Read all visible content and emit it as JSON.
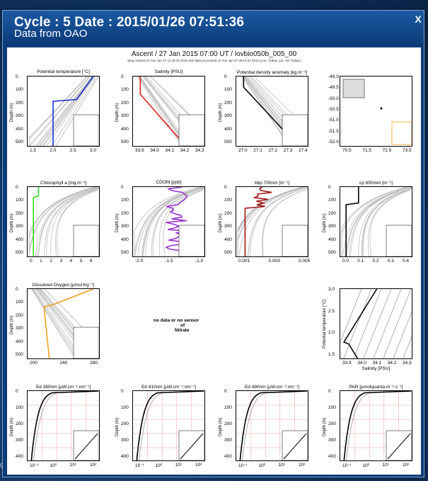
{
  "window": {
    "title": "Cycle : 5 Date : 2015/01/26 07:51:36",
    "subtitle": "Data from OAO",
    "close_label": "X"
  },
  "figure": {
    "header": "Ascent / 27 Jan 2015 07:00 UT /  lovbio050b_005_00",
    "subheader": "Jpeg created on Tue Jan 27 11:29:43 2015 with data processed on Tue Jan 27 08:51:52 2015 (Lon: 72deg, Lat: -50.73deg.)",
    "no_data_text": "no data or no sensor",
    "no_data_of": "of",
    "no_data_var": "Nitrate",
    "panels": [
      {
        "id": "temp",
        "title": "Potential temperature [°C]",
        "ylabel": "Depth (m)",
        "yticks": [
          "0",
          "100",
          "200",
          "300",
          "400",
          "500"
        ],
        "xticks": [
          "1.5",
          "2.0",
          "2.5",
          "3.0"
        ],
        "color": "#1f2fd0"
      },
      {
        "id": "sal",
        "title": "Salinity [PSU]",
        "ylabel": "Depth (m)",
        "yticks": [
          "0",
          "100",
          "200",
          "300",
          "400",
          "500"
        ],
        "xticks": [
          "33.9",
          "34.0",
          "34.1",
          "34.2",
          "34.3"
        ],
        "color": "#e01b1b"
      },
      {
        "id": "dens",
        "title": "Potential density anomaly [kg.m⁻³]",
        "ylabel": "Depth (m)",
        "yticks": [
          "0",
          "100",
          "200",
          "300",
          "400",
          "500"
        ],
        "xticks": [
          "27.0",
          "27.1",
          "27.2",
          "27.3",
          "27.4"
        ],
        "color": "#000000"
      },
      {
        "id": "map",
        "title": "",
        "ylabel": "",
        "yticks": [
          "-49.0",
          "-49.5",
          "-50.0",
          "-50.5",
          "-51.0",
          "-51.5",
          "-52.0"
        ],
        "xticks": [
          "70.5",
          "71.5",
          "72.5",
          "73.5"
        ],
        "color": "#000000"
      },
      {
        "id": "chl",
        "title": "Chlorophyll a [mg.m⁻³]",
        "ylabel": "Depth (m)",
        "yticks": [
          "0",
          "100",
          "200",
          "300",
          "400",
          "500"
        ],
        "xticks": [
          "0",
          "1",
          "2",
          "3",
          "4",
          "5",
          "6"
        ],
        "color": "#33dd22"
      },
      {
        "id": "cdom",
        "title": "CDOM [ppb]",
        "ylabel": "Depth (m)",
        "yticks": [
          "0",
          "100",
          "200",
          "300",
          "400",
          "500"
        ],
        "xticks": [
          "-2.0",
          "-1.5",
          "-1.0"
        ],
        "color": "#9933cc"
      },
      {
        "id": "bbp",
        "title": "bbp 700nm [m⁻¹]",
        "ylabel": "Depth (m)",
        "yticks": [
          "0",
          "100",
          "200",
          "300",
          "400",
          "500"
        ],
        "xticks": [
          "0.001",
          "0.003",
          "0.005"
        ],
        "color": "#a01818"
      },
      {
        "id": "cp",
        "title": "cp 650mm [m⁻¹]",
        "ylabel": "Depth (m)",
        "yticks": [
          "0",
          "100",
          "200",
          "300",
          "400",
          "500"
        ],
        "xticks": [
          "0.0",
          "0.1",
          "0.2",
          "0.3",
          "0.4"
        ],
        "color": "#000000"
      },
      {
        "id": "doxy",
        "title": "Dissolved Oxygen [µmol.Kg⁻¹]",
        "ylabel": "Depth (m)",
        "yticks": [
          "0",
          "100",
          "200",
          "300",
          "400",
          "500"
        ],
        "xticks": [
          "200",
          "240",
          "280"
        ],
        "color": "#f0a020"
      },
      {
        "id": "ts",
        "title": "",
        "ylabel": "Potential temperature [°C]",
        "xlabel": "Salinity [PSU]",
        "yticks": [
          "3.0",
          "2.5",
          "2.0",
          "1.5"
        ],
        "xticks": [
          "33.9",
          "34.0",
          "34.1",
          "34.2",
          "34.3"
        ],
        "color": "#000000"
      },
      {
        "id": "ed380",
        "title": "Ed 380nm [µW.cm⁻².nm⁻¹]",
        "ylabel": "Depth (m)",
        "yticks": [
          "0",
          "100",
          "200",
          "300",
          "400"
        ],
        "xticks": [
          "10⁻¹",
          "10⁰",
          "10¹",
          "10²"
        ],
        "color": "#000000"
      },
      {
        "id": "ed410",
        "title": "Ed 410nm [µW.cm⁻².nm⁻¹]",
        "ylabel": "Depth (m)",
        "yticks": [
          "0",
          "100",
          "200",
          "300",
          "400"
        ],
        "xticks": [
          "10⁻¹",
          "10⁰",
          "10¹",
          "10²"
        ],
        "color": "#000000"
      },
      {
        "id": "ed490",
        "title": "Ed 490nm [µW.cm⁻².nm⁻¹]",
        "ylabel": "Depth (m)",
        "yticks": [
          "0",
          "100",
          "200",
          "300",
          "400"
        ],
        "xticks": [
          "10⁻¹",
          "10⁰",
          "10¹",
          "10²"
        ],
        "color": "#000000"
      },
      {
        "id": "par",
        "title": "PAR [µmolquanta.m⁻².s⁻¹]",
        "ylabel": "Depth (m)",
        "yticks": [
          "0",
          "100",
          "200",
          "300",
          "400"
        ],
        "xticks": [
          "10⁻¹",
          "10⁰",
          "10¹",
          "10²"
        ],
        "color": "#000000"
      }
    ]
  }
}
